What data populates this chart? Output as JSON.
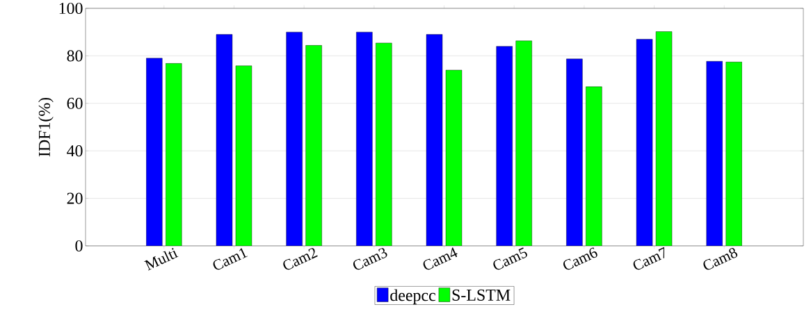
{
  "chart_data": {
    "type": "bar",
    "ylabel": "IDF1(%)",
    "categories": [
      "Multi",
      "Cam1",
      "Cam2",
      "Cam3",
      "Cam4",
      "Cam5",
      "Cam6",
      "Cam7",
      "Cam8"
    ],
    "series": [
      {
        "name": "deepcc",
        "color": "#0000ff",
        "values": [
          79,
          89,
          90,
          90,
          89,
          84,
          78.7,
          87,
          77.7
        ]
      },
      {
        "name": "S-LSTM",
        "color": "#00ff00",
        "values": [
          76.8,
          75.8,
          84.4,
          85.4,
          74,
          86.3,
          67,
          90.2,
          77.4
        ]
      }
    ],
    "ylim": [
      0,
      100
    ],
    "yticks": [
      0,
      20,
      40,
      60,
      80,
      100
    ],
    "grid": "y",
    "legend": "bottom"
  }
}
